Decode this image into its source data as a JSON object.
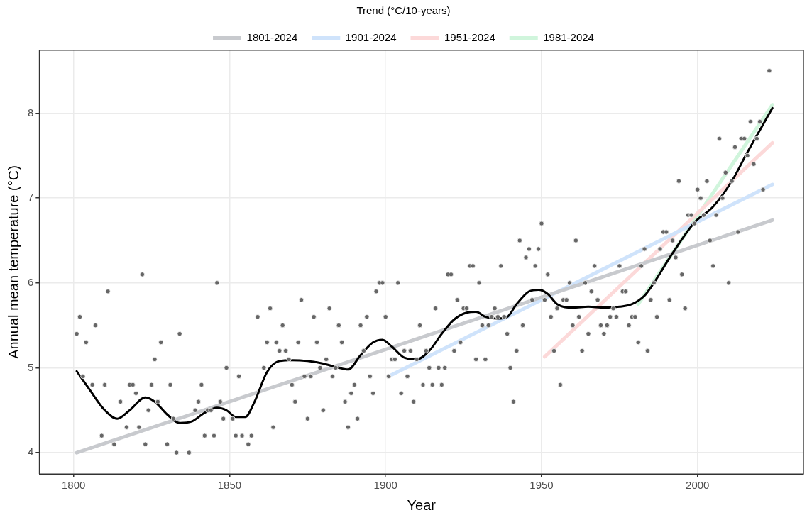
{
  "chart_data": {
    "type": "scatter",
    "xlabel": "Year",
    "ylabel": "Annual mean temperature (°C)",
    "legend_title": "Trend (°C/10-years)",
    "legend": "top",
    "grid": true,
    "xlim": [
      1789,
      2034
    ],
    "xticks": [
      1800,
      1850,
      1900,
      1950,
      2000
    ],
    "ylim": [
      3.75,
      8.74
    ],
    "yticks": [
      4,
      5,
      6,
      7,
      8
    ],
    "series": [
      {
        "marker": "circle",
        "color": "#666666",
        "x": [
          1801,
          1802,
          1803,
          1804,
          1806,
          1807,
          1809,
          1810,
          1811,
          1813,
          1815,
          1817,
          1818,
          1819,
          1820,
          1821,
          1822,
          1823,
          1824,
          1825,
          1826,
          1827,
          1828,
          1830,
          1831,
          1832,
          1833,
          1834,
          1837,
          1839,
          1840,
          1841,
          1842,
          1843,
          1844,
          1845,
          1846,
          1847,
          1848,
          1849,
          1851,
          1852,
          1853,
          1854,
          1856,
          1857,
          1859,
          1861,
          1862,
          1863,
          1864,
          1865,
          1866,
          1867,
          1868,
          1869,
          1870,
          1871,
          1872,
          1873,
          1874,
          1875,
          1876,
          1877,
          1878,
          1879,
          1880,
          1881,
          1882,
          1883,
          1884,
          1885,
          1886,
          1887,
          1888,
          1889,
          1890,
          1891,
          1892,
          1893,
          1894,
          1895,
          1896,
          1897,
          1898,
          1899,
          1900,
          1901,
          1902,
          1903,
          1904,
          1905,
          1906,
          1907,
          1908,
          1909,
          1910,
          1911,
          1912,
          1913,
          1914,
          1915,
          1916,
          1917,
          1918,
          1919,
          1920,
          1921,
          1922,
          1923,
          1924,
          1925,
          1926,
          1927,
          1928,
          1929,
          1930,
          1931,
          1932,
          1933,
          1934,
          1935,
          1936,
          1937,
          1938,
          1939,
          1940,
          1941,
          1942,
          1943,
          1944,
          1945,
          1946,
          1947,
          1948,
          1949,
          1950,
          1951,
          1952,
          1953,
          1954,
          1955,
          1956,
          1957,
          1958,
          1959,
          1960,
          1961,
          1962,
          1963,
          1964,
          1965,
          1966,
          1967,
          1968,
          1969,
          1970,
          1971,
          1972,
          1973,
          1974,
          1975,
          1976,
          1977,
          1978,
          1979,
          1980,
          1981,
          1982,
          1983,
          1984,
          1985,
          1986,
          1987,
          1988,
          1989,
          1990,
          1991,
          1992,
          1993,
          1994,
          1995,
          1996,
          1997,
          1998,
          1999,
          2000,
          2001,
          2002,
          2003,
          2004,
          2005,
          2006,
          2007,
          2008,
          2009,
          2010,
          2011,
          2012,
          2013,
          2014,
          2015,
          2016,
          2017,
          2018,
          2019,
          2020,
          2021,
          2023
        ],
        "values": [
          5.4,
          5.6,
          4.9,
          5.3,
          4.8,
          5.5,
          4.2,
          4.8,
          5.9,
          4.1,
          4.6,
          4.3,
          4.8,
          4.8,
          4.7,
          4.3,
          6.1,
          4.1,
          4.5,
          4.8,
          5.1,
          4.6,
          5.3,
          4.1,
          4.8,
          4.4,
          4.0,
          5.4,
          4.0,
          4.5,
          4.6,
          4.8,
          4.2,
          4.5,
          4.5,
          4.2,
          6.0,
          4.6,
          4.4,
          5.0,
          4.4,
          4.2,
          4.9,
          4.2,
          4.1,
          4.2,
          5.6,
          5.0,
          5.3,
          5.7,
          4.3,
          5.3,
          5.2,
          5.5,
          5.2,
          5.1,
          4.8,
          4.6,
          5.3,
          5.8,
          4.9,
          4.4,
          4.9,
          5.6,
          5.3,
          5.0,
          4.5,
          5.1,
          5.7,
          4.9,
          5.0,
          5.5,
          5.3,
          4.6,
          4.3,
          4.7,
          4.8,
          4.4,
          5.5,
          5.2,
          5.6,
          4.9,
          4.7,
          5.9,
          6.0,
          6.0,
          5.6,
          4.9,
          5.1,
          5.1,
          6.0,
          4.7,
          5.2,
          4.9,
          5.2,
          4.6,
          5.1,
          5.5,
          4.8,
          5.2,
          5.0,
          4.8,
          5.7,
          5.0,
          4.8,
          5.0,
          6.1,
          6.1,
          5.2,
          5.8,
          5.3,
          5.7,
          5.7,
          6.2,
          6.2,
          5.1,
          6.0,
          5.5,
          5.1,
          5.5,
          5.6,
          5.7,
          5.6,
          6.2,
          5.6,
          5.4,
          5.0,
          4.6,
          5.2,
          6.5,
          5.5,
          6.3,
          6.4,
          5.8,
          6.2,
          6.4,
          6.7,
          5.8,
          6.1,
          5.6,
          5.2,
          5.7,
          4.8,
          5.8,
          5.8,
          6.0,
          5.5,
          6.5,
          5.6,
          5.2,
          6.0,
          5.4,
          5.9,
          6.2,
          5.8,
          5.5,
          5.4,
          5.5,
          5.6,
          5.7,
          5.6,
          6.2,
          5.9,
          5.9,
          5.5,
          5.6,
          5.6,
          5.3,
          6.2,
          6.4,
          5.2,
          5.8,
          6.0,
          5.6,
          6.4,
          6.6,
          6.6,
          5.8,
          6.5,
          6.3,
          7.2,
          6.1,
          5.7,
          6.8,
          6.8,
          6.7,
          7.1,
          7.0,
          6.8,
          7.2,
          6.5,
          6.2,
          6.8,
          7.7,
          7.0,
          7.3,
          6.0,
          7.2,
          7.6,
          6.6,
          7.7,
          7.7,
          7.5,
          7.9,
          7.4,
          7.7,
          7.9,
          7.1,
          8.5
        ]
      },
      {
        "type": "line",
        "marker": "none",
        "color": "#000000",
        "x": [
          1801,
          1805,
          1810,
          1814,
          1818,
          1823,
          1826,
          1830,
          1834,
          1838,
          1842,
          1846,
          1849,
          1852,
          1855,
          1858,
          1862,
          1866,
          1870,
          1875,
          1880,
          1885,
          1888,
          1892,
          1896,
          1899,
          1902,
          1906,
          1910,
          1914,
          1918,
          1922,
          1926,
          1929,
          1932,
          1936,
          1939,
          1942,
          1946,
          1949,
          1952,
          1955,
          1960,
          1965,
          1970,
          1975,
          1979,
          1983,
          1986,
          1992,
          1999,
          2005,
          2011,
          2016,
          2024
        ],
        "values": [
          4.96,
          4.75,
          4.5,
          4.4,
          4.5,
          4.65,
          4.6,
          4.45,
          4.35,
          4.37,
          4.47,
          4.53,
          4.5,
          4.42,
          4.42,
          4.6,
          4.95,
          5.08,
          5.09,
          5.08,
          5.05,
          5.0,
          4.98,
          5.15,
          5.3,
          5.33,
          5.25,
          5.12,
          5.1,
          5.2,
          5.4,
          5.57,
          5.65,
          5.66,
          5.6,
          5.58,
          5.6,
          5.75,
          5.9,
          5.92,
          5.87,
          5.75,
          5.71,
          5.72,
          5.71,
          5.72,
          5.75,
          5.85,
          6.0,
          6.35,
          6.71,
          6.9,
          7.2,
          7.54,
          8.06
        ]
      },
      {
        "type": "line",
        "marker": "none",
        "name": "1801-2024",
        "color": "#c8cace",
        "x": [
          1801,
          2024
        ],
        "values": [
          4.0,
          6.74
        ]
      },
      {
        "type": "line",
        "marker": "none",
        "name": "1901-2024",
        "color": "#cfe3fb",
        "x": [
          1901,
          2024
        ],
        "values": [
          4.9,
          7.16
        ]
      },
      {
        "type": "line",
        "marker": "none",
        "name": "1951-2024",
        "color": "#fcd9d9",
        "x": [
          1951,
          2024
        ],
        "values": [
          5.13,
          7.65
        ]
      },
      {
        "type": "line",
        "marker": "none",
        "name": "1981-2024",
        "color": "#d0f5dc",
        "x": [
          1981,
          2024
        ],
        "values": [
          5.75,
          8.1
        ]
      }
    ]
  }
}
